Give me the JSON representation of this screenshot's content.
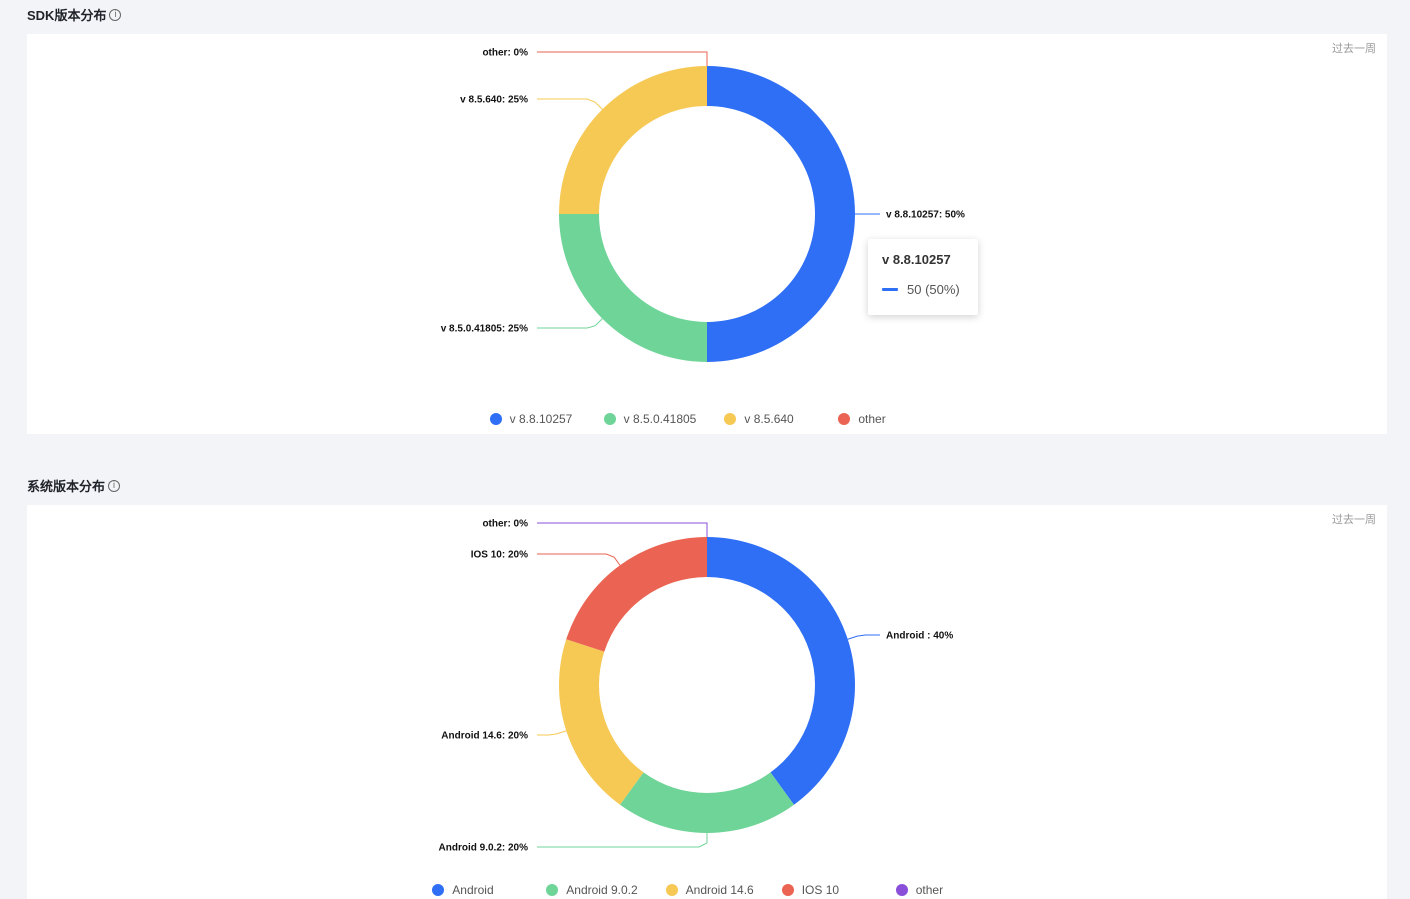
{
  "sections": [
    {
      "title": "SDK版本分布",
      "info_icon": "info-icon",
      "period_label": "过去一周",
      "chart_data": {
        "type": "pie",
        "subtype": "donut",
        "slices": [
          {
            "name": "v 8.8.10257",
            "value": 50,
            "percent": 50,
            "color": "#2f6ff5",
            "label": "v 8.8.10257: 50%"
          },
          {
            "name": "v 8.5.0.41805",
            "value": 25,
            "percent": 25,
            "color": "#6fd498",
            "label": "v 8.5.0.41805: 25%"
          },
          {
            "name": "v 8.5.640",
            "value": 25,
            "percent": 25,
            "color": "#f6c955",
            "label": "v 8.5.640: 25%"
          },
          {
            "name": "other",
            "value": 0,
            "percent": 0,
            "color": "#eb6352",
            "label": "other: 0%"
          }
        ],
        "legend_position": "bottom"
      },
      "tooltip": {
        "title": "v 8.8.10257",
        "value_text": "50 (50%)",
        "color": "#2f6ff5"
      }
    },
    {
      "title": "系统版本分布",
      "info_icon": "info-icon",
      "period_label": "过去一周",
      "chart_data": {
        "type": "pie",
        "subtype": "donut",
        "slices": [
          {
            "name": "Android",
            "value": 40,
            "percent": 40,
            "color": "#2f6ff5",
            "label": "Android : 40%"
          },
          {
            "name": "Android 9.0.2",
            "value": 20,
            "percent": 20,
            "color": "#6fd498",
            "label": "Android 9.0.2: 20%"
          },
          {
            "name": "Android 14.6",
            "value": 20,
            "percent": 20,
            "color": "#f6c955",
            "label": "Android 14.6: 20%"
          },
          {
            "name": "IOS 10",
            "value": 20,
            "percent": 20,
            "color": "#eb6352",
            "label": "IOS 10: 20%"
          },
          {
            "name": "other",
            "value": 0,
            "percent": 0,
            "color": "#8a4fd8",
            "label": "other: 0%"
          }
        ],
        "legend_position": "bottom"
      }
    }
  ]
}
